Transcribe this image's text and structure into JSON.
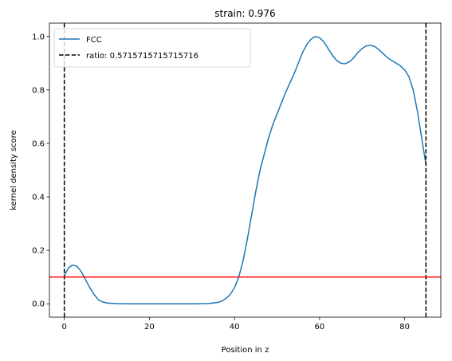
{
  "chart_data": {
    "type": "line",
    "title": "strain: 0.976",
    "xlabel": "Position in z",
    "ylabel": "kernel density score",
    "xlim": [
      -3.5,
      88.5
    ],
    "ylim": [
      -0.05,
      1.05
    ],
    "xticks": [
      0,
      20,
      40,
      60,
      80
    ],
    "yticks": [
      0.0,
      0.2,
      0.4,
      0.6,
      0.8,
      1.0
    ],
    "grid": false,
    "legend_position": "upper-left",
    "series": [
      {
        "name": "FCC",
        "color": "#1f77b4",
        "style": "solid",
        "x": [
          0,
          1,
          2,
          3,
          4,
          5,
          6,
          7,
          8,
          9,
          10,
          12,
          15,
          20,
          25,
          30,
          34,
          36,
          37,
          38,
          39,
          40,
          41,
          42,
          43,
          44,
          45,
          46,
          47,
          48,
          49,
          50,
          52,
          54,
          56,
          57,
          58,
          59,
          60,
          61,
          62,
          63,
          64,
          65,
          66,
          67,
          68,
          69,
          70,
          71,
          72,
          73,
          74,
          75,
          76,
          77,
          78,
          79,
          80,
          81,
          82,
          83,
          84,
          85
        ],
        "y": [
          0.105,
          0.135,
          0.145,
          0.14,
          0.12,
          0.09,
          0.06,
          0.035,
          0.015,
          0.007,
          0.003,
          0.001,
          0.0,
          0.0,
          0.0,
          0.0,
          0.001,
          0.005,
          0.01,
          0.02,
          0.035,
          0.06,
          0.1,
          0.16,
          0.24,
          0.33,
          0.42,
          0.5,
          0.56,
          0.62,
          0.67,
          0.71,
          0.79,
          0.86,
          0.94,
          0.97,
          0.99,
          1.0,
          0.995,
          0.98,
          0.955,
          0.93,
          0.91,
          0.9,
          0.898,
          0.905,
          0.92,
          0.94,
          0.955,
          0.965,
          0.967,
          0.962,
          0.95,
          0.935,
          0.92,
          0.91,
          0.9,
          0.89,
          0.875,
          0.85,
          0.8,
          0.72,
          0.62,
          0.52
        ]
      },
      {
        "name": "ratio: 0.5715715715715716",
        "color": "#000000",
        "style": "dashed",
        "vlines": [
          0,
          85
        ]
      },
      {
        "name": "",
        "color": "#ff0000",
        "style": "solid",
        "hline": 0.1
      }
    ]
  }
}
